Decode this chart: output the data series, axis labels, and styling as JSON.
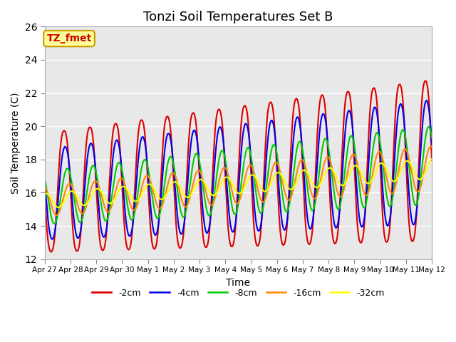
{
  "title": "Tonzi Soil Temperatures Set B",
  "xlabel": "Time",
  "ylabel": "Soil Temperature (C)",
  "ylim": [
    12,
    26
  ],
  "yticks": [
    12,
    14,
    16,
    18,
    20,
    22,
    24,
    26
  ],
  "xlabels": [
    "Apr 27",
    "Apr 28",
    "Apr 29",
    "Apr 30",
    "May 1",
    "May 2",
    "May 3",
    "May 4",
    "May 5",
    "May 6",
    "May 7",
    "May 8",
    "May 9",
    "May 10",
    "May 11",
    "May 12"
  ],
  "annotation_text": "TZ_fmet",
  "annotation_color": "#cc0000",
  "annotation_bg": "#ffff99",
  "annotation_border": "#cc9900",
  "series": [
    {
      "label": "-2cm",
      "color": "#dd0000",
      "lw": 1.5
    },
    {
      "label": "-4cm",
      "color": "#0000ee",
      "lw": 1.5
    },
    {
      "label": "-8cm",
      "color": "#00cc00",
      "lw": 1.5
    },
    {
      "label": "-16cm",
      "color": "#ff8800",
      "lw": 1.5
    },
    {
      "label": "-32cm",
      "color": "#ffff00",
      "lw": 1.5
    }
  ],
  "background_color": "#e8e8e8",
  "legend_colors": [
    "#dd0000",
    "#0000ee",
    "#00cc00",
    "#ff8800",
    "#ffff00"
  ]
}
